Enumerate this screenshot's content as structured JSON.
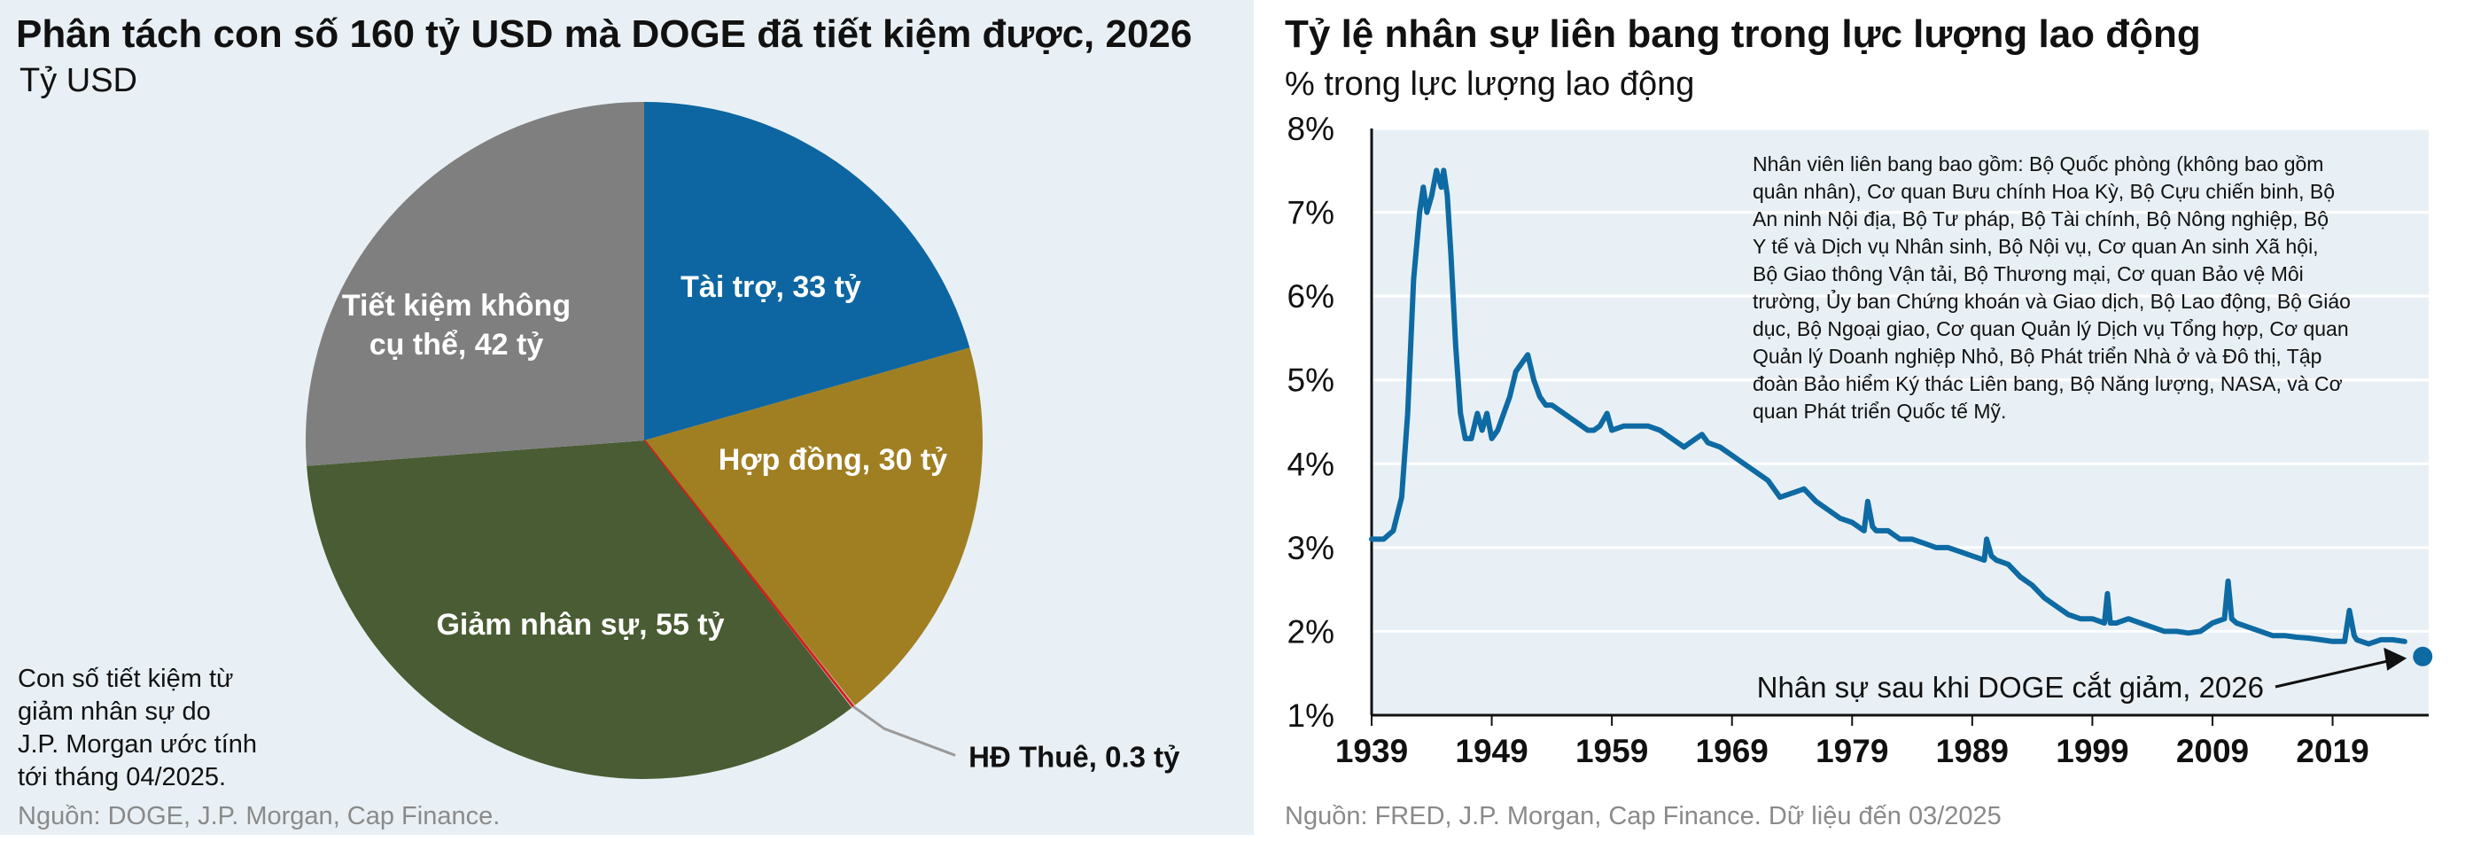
{
  "left": {
    "title": "Phân tách con số 160 tỷ USD mà DOGE đã tiết kiệm được, 2026",
    "subtitle": "Tỷ USD",
    "note_lines": [
      "Con số tiết kiệm từ",
      "giảm nhân sự do",
      "J.P. Morgan ước tính",
      "tới tháng 04/2025."
    ],
    "source": "Nguồn: DOGE, J.P. Morgan, Cap Finance."
  },
  "right": {
    "title": "Tỷ lệ nhân sự liên bang trong lực lượng lao động",
    "subtitle": "% trong lực lượng lao động",
    "description_lines": [
      "Nhân viên liên bang bao gồm: Bộ Quốc phòng (không bao gồm",
      "quân nhân), Cơ quan Bưu chính Hoa Kỳ, Bộ Cựu chiến binh, Bộ",
      "An ninh Nội địa, Bộ Tư pháp, Bộ Tài chính, Bộ Nông nghiệp, Bộ",
      "Y tế và Dịch vụ Nhân sinh, Bộ Nội vụ, Cơ quan An sinh Xã hội,",
      "Bộ Giao thông Vận tải, Bộ Thương mại, Cơ quan Bảo vệ Môi",
      "trường, Ủy ban Chứng khoán và Giao dịch, Bộ Lao động, Bộ Giáo",
      "dục, Bộ Ngoại giao, Cơ quan Quản lý Dịch vụ Tổng hợp, Cơ quan",
      "Quản lý Doanh nghiệp Nhỏ, Bộ Phát triển Nhà ở và Đô thị, Tập",
      "đoàn Bảo hiểm Ký thác Liên bang, Bộ Năng lượng, NASA, và Cơ",
      "quan Phát triển Quốc tế Mỹ."
    ],
    "source": "Nguồn: FRED, J.P. Morgan, Cap Finance. Dữ liệu đến 03/2025"
  },
  "colors": {
    "panel_bg": "#e8f0f5",
    "line": "#0e6aa3",
    "gridline": "#ffffff",
    "leader": "#9a9a9a"
  },
  "chart_data": [
    {
      "type": "pie",
      "title": "Phân tách con số 160 tỷ USD mà DOGE đã tiết kiệm được, 2026",
      "unit": "Tỷ USD",
      "start": "12 o'clock, clockwise",
      "slices": [
        {
          "name": "Tài trợ",
          "value": 33,
          "label_lines": [
            "Tài trợ, 33 tỷ"
          ],
          "color": "#0d66a1",
          "label_color": "#ffffff"
        },
        {
          "name": "Hợp đồng",
          "value": 30,
          "label_lines": [
            "Hợp đồng, 30 tỷ"
          ],
          "color": "#a07f22",
          "label_color": "#ffffff"
        },
        {
          "name": "HĐ Thuê",
          "value": 0.3,
          "label_lines": [
            "HĐ Thuê, 0.3 tỷ"
          ],
          "color": "#d11f1f",
          "label_color": "#111111",
          "external": true
        },
        {
          "name": "Giảm nhân sự",
          "value": 55,
          "label_lines": [
            "Giảm nhân sự, 55 tỷ"
          ],
          "color": "#4a5c33",
          "label_color": "#ffffff"
        },
        {
          "name": "Tiết kiệm không cụ thể",
          "value": 42,
          "label_lines": [
            "Tiết kiệm không",
            "cụ thể, 42 tỷ"
          ],
          "color": "#7f7f7f",
          "label_color": "#ffffff"
        }
      ]
    },
    {
      "type": "line",
      "title": "Tỷ lệ nhân sự liên bang trong lực lượng lao động",
      "ylabel": "% trong lực lượng lao động",
      "xlim": [
        1939,
        2027
      ],
      "ylim": [
        1,
        8
      ],
      "yticks": [
        1,
        2,
        3,
        4,
        5,
        6,
        7,
        8
      ],
      "ytick_labels": [
        "1%",
        "2%",
        "3%",
        "4%",
        "5%",
        "6%",
        "7%",
        "8%"
      ],
      "xticks": [
        1939,
        1949,
        1959,
        1969,
        1979,
        1989,
        1999,
        2009,
        2019
      ],
      "xtick_labels": [
        "1939",
        "1949",
        "1959",
        "1969",
        "1979",
        "1989",
        "1999",
        "2009",
        "2019"
      ],
      "grid": true,
      "series": [
        {
          "name": "Tỷ lệ nhân sự liên bang",
          "x": [
            1939,
            1940,
            1940.8,
            1941.5,
            1942,
            1942.5,
            1943,
            1943.3,
            1943.6,
            1944,
            1944.4,
            1944.8,
            1945,
            1945.3,
            1945.6,
            1946,
            1946.4,
            1946.8,
            1947.3,
            1947.8,
            1948.2,
            1948.6,
            1949,
            1949.5,
            1950,
            1950.5,
            1951,
            1951.5,
            1952,
            1952.5,
            1953,
            1953.5,
            1954,
            1955,
            1956,
            1957,
            1957.5,
            1958,
            1958.6,
            1959,
            1960,
            1961,
            1962,
            1963,
            1964,
            1965,
            1966,
            1966.5,
            1967,
            1968,
            1969,
            1970,
            1971,
            1972,
            1973,
            1974,
            1975,
            1976,
            1977,
            1978,
            1979,
            1980,
            1980.3,
            1980.7,
            1981,
            1982,
            1983,
            1984,
            1985,
            1986,
            1987,
            1988,
            1989,
            1990,
            1990.2,
            1990.6,
            1991,
            1992,
            1993,
            1994,
            1995,
            1996,
            1997,
            1998,
            1999,
            2000,
            2000.25,
            2000.5,
            2001,
            2002,
            2003,
            2004,
            2005,
            2006,
            2007,
            2008,
            2009,
            2010,
            2010.3,
            2010.6,
            2011,
            2012,
            2013,
            2014,
            2015,
            2016,
            2017,
            2018,
            2019,
            2020,
            2020.4,
            2020.8,
            2021,
            2022,
            2023,
            2024,
            2025
          ],
          "y": [
            3.1,
            3.1,
            3.2,
            3.6,
            4.6,
            6.2,
            7.0,
            7.3,
            7.0,
            7.2,
            7.5,
            7.3,
            7.5,
            7.2,
            6.5,
            5.4,
            4.6,
            4.3,
            4.3,
            4.6,
            4.4,
            4.6,
            4.3,
            4.4,
            4.6,
            4.8,
            5.1,
            5.2,
            5.3,
            5.0,
            4.8,
            4.7,
            4.7,
            4.6,
            4.5,
            4.4,
            4.4,
            4.45,
            4.6,
            4.4,
            4.45,
            4.45,
            4.45,
            4.4,
            4.3,
            4.2,
            4.3,
            4.35,
            4.25,
            4.2,
            4.1,
            4.0,
            3.9,
            3.8,
            3.6,
            3.65,
            3.7,
            3.55,
            3.45,
            3.35,
            3.3,
            3.2,
            3.55,
            3.25,
            3.2,
            3.2,
            3.1,
            3.1,
            3.05,
            3.0,
            3.0,
            2.95,
            2.9,
            2.85,
            3.1,
            2.9,
            2.85,
            2.8,
            2.65,
            2.55,
            2.4,
            2.3,
            2.2,
            2.15,
            2.15,
            2.1,
            2.45,
            2.1,
            2.1,
            2.15,
            2.1,
            2.05,
            2.0,
            2.0,
            1.98,
            2.0,
            2.1,
            2.15,
            2.6,
            2.15,
            2.1,
            2.05,
            2.0,
            1.95,
            1.95,
            1.93,
            1.92,
            1.9,
            1.88,
            1.88,
            2.25,
            1.95,
            1.9,
            1.85,
            1.9,
            1.9,
            1.88
          ]
        }
      ],
      "marker": {
        "label": "Nhân sự sau khi DOGE cắt giảm, 2026",
        "x": 2026.5,
        "y": 1.7
      }
    }
  ]
}
